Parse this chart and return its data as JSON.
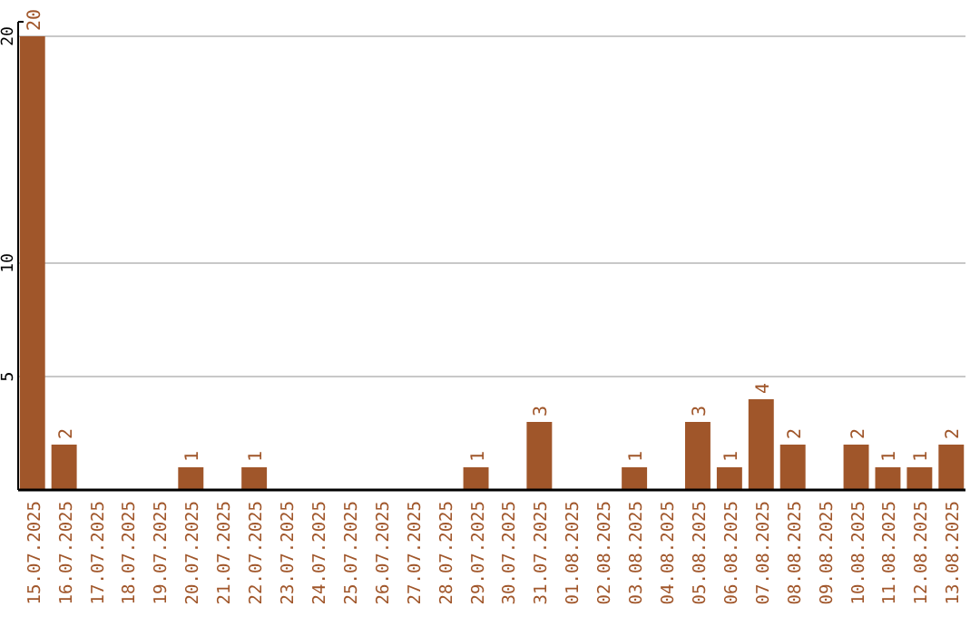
{
  "chart_data": {
    "type": "bar",
    "categories": [
      "15.07.2025",
      "16.07.2025",
      "17.07.2025",
      "18.07.2025",
      "19.07.2025",
      "20.07.2025",
      "21.07.2025",
      "22.07.2025",
      "23.07.2025",
      "24.07.2025",
      "25.07.2025",
      "26.07.2025",
      "27.07.2025",
      "28.07.2025",
      "29.07.2025",
      "30.07.2025",
      "31.07.2025",
      "01.08.2025",
      "02.08.2025",
      "03.08.2025",
      "04.08.2025",
      "05.08.2025",
      "06.08.2025",
      "07.08.2025",
      "08.08.2025",
      "09.08.2025",
      "10.08.2025",
      "11.08.2025",
      "12.08.2025",
      "13.08.2025"
    ],
    "values": [
      20,
      2,
      0,
      0,
      0,
      1,
      0,
      1,
      0,
      0,
      0,
      0,
      0,
      0,
      1,
      0,
      3,
      0,
      0,
      1,
      0,
      3,
      1,
      4,
      2,
      0,
      2,
      1,
      1,
      2
    ],
    "value_labels": [
      "20",
      "2",
      null,
      null,
      null,
      "1",
      null,
      "1",
      null,
      null,
      null,
      null,
      null,
      null,
      "1",
      null,
      "3",
      null,
      null,
      "1",
      null,
      "3",
      "1",
      "4",
      "2",
      null,
      "2",
      "1",
      "1",
      "2"
    ],
    "color": "#a0562a",
    "ylim": [
      0,
      20
    ],
    "yticks": [
      5,
      10,
      20
    ],
    "grid": "y"
  }
}
